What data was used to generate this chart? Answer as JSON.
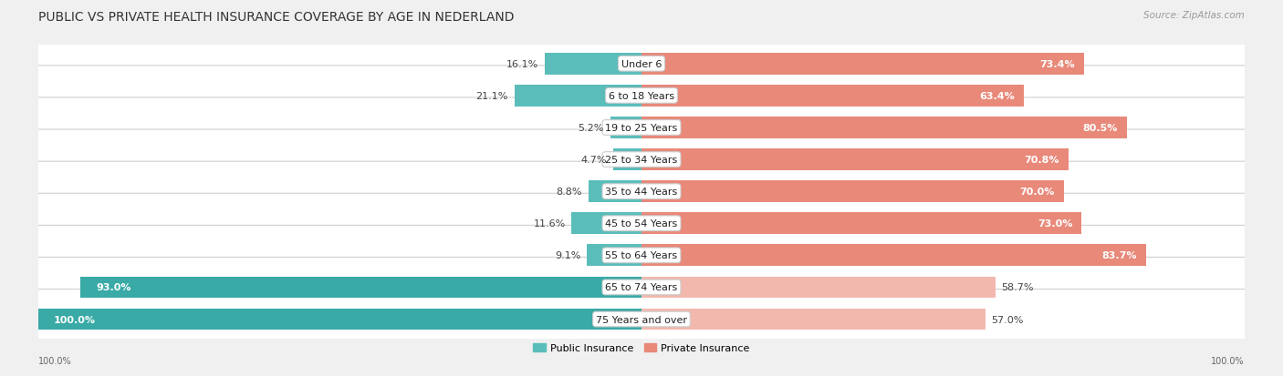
{
  "title": "PUBLIC VS PRIVATE HEALTH INSURANCE COVERAGE BY AGE IN NEDERLAND",
  "source": "Source: ZipAtlas.com",
  "categories": [
    "Under 6",
    "6 to 18 Years",
    "19 to 25 Years",
    "25 to 34 Years",
    "35 to 44 Years",
    "45 to 54 Years",
    "55 to 64 Years",
    "65 to 74 Years",
    "75 Years and over"
  ],
  "public_values": [
    16.1,
    21.1,
    5.2,
    4.7,
    8.8,
    11.6,
    9.1,
    93.0,
    100.0
  ],
  "private_values": [
    73.4,
    63.4,
    80.5,
    70.8,
    70.0,
    73.0,
    83.7,
    58.7,
    57.0
  ],
  "public_color": "#5bbdba",
  "private_color": "#e8897a",
  "public_color_large": "#39aaa6",
  "private_color_faded": "#f2b8ae",
  "bg_color": "#f0f0f0",
  "row_bg": "#ffffff",
  "title_fontsize": 10,
  "source_fontsize": 7.5,
  "bar_fontsize": 8,
  "legend_fontsize": 8,
  "axis_label_fontsize": 7,
  "pub_scale": 100.0,
  "priv_scale": 100.0,
  "legend_labels": [
    "Public Insurance",
    "Private Insurance"
  ],
  "x_left_label": "100.0%",
  "x_right_label": "100.0%"
}
